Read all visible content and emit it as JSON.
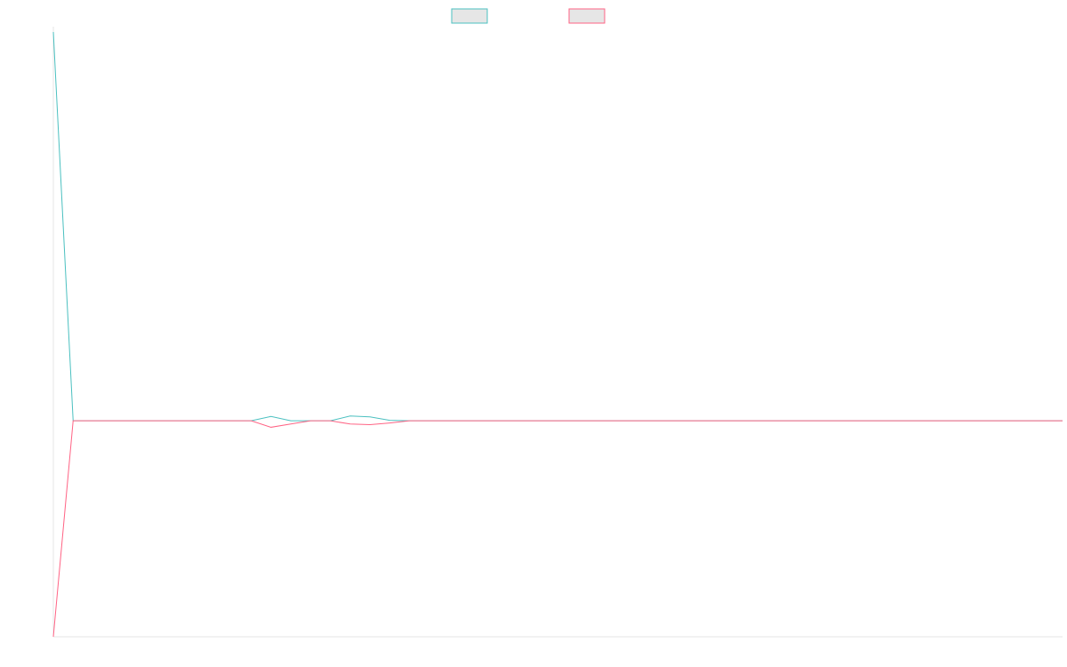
{
  "chart_data": {
    "type": "line",
    "x": [
      0,
      1,
      2,
      3,
      4,
      5,
      6,
      7,
      8,
      9,
      10,
      11,
      12,
      13,
      14,
      15,
      16,
      17,
      18,
      19,
      20,
      21,
      22,
      23,
      24,
      25,
      26,
      27,
      28,
      29,
      30,
      31,
      32,
      33,
      34,
      35,
      36,
      37,
      38,
      39,
      40,
      41,
      42,
      43,
      44,
      45,
      46,
      47,
      48,
      49,
      50,
      51
    ],
    "ylim": [
      -1,
      1.8
    ],
    "grid": false,
    "legend_position": "top-center",
    "series": [
      {
        "color": "#4bc0c0",
        "values": [
          1.8,
          0,
          0,
          0,
          0,
          0,
          0,
          0,
          0,
          0,
          0,
          0.02,
          0,
          0,
          0,
          0.022,
          0.018,
          0.002,
          0,
          0,
          0,
          0,
          0,
          0,
          0,
          0,
          0,
          0,
          0,
          0,
          0,
          0,
          0,
          0,
          0,
          0,
          0,
          0,
          0,
          0,
          0,
          0,
          0,
          0,
          0,
          0,
          0,
          0,
          0,
          0,
          0,
          0
        ]
      },
      {
        "color": "#ff6384",
        "values": [
          -1,
          0,
          0,
          0,
          0,
          0,
          0,
          0,
          0,
          0,
          0,
          -0.03,
          -0.015,
          0,
          0,
          -0.015,
          -0.018,
          -0.01,
          0,
          0,
          0,
          0,
          0,
          0,
          0,
          0,
          0,
          0,
          0,
          0,
          0,
          0,
          0,
          0,
          0,
          0,
          0,
          0,
          0,
          0,
          0,
          0,
          0,
          0,
          0,
          0,
          0,
          0,
          0,
          0,
          0,
          0
        ]
      }
    ]
  }
}
